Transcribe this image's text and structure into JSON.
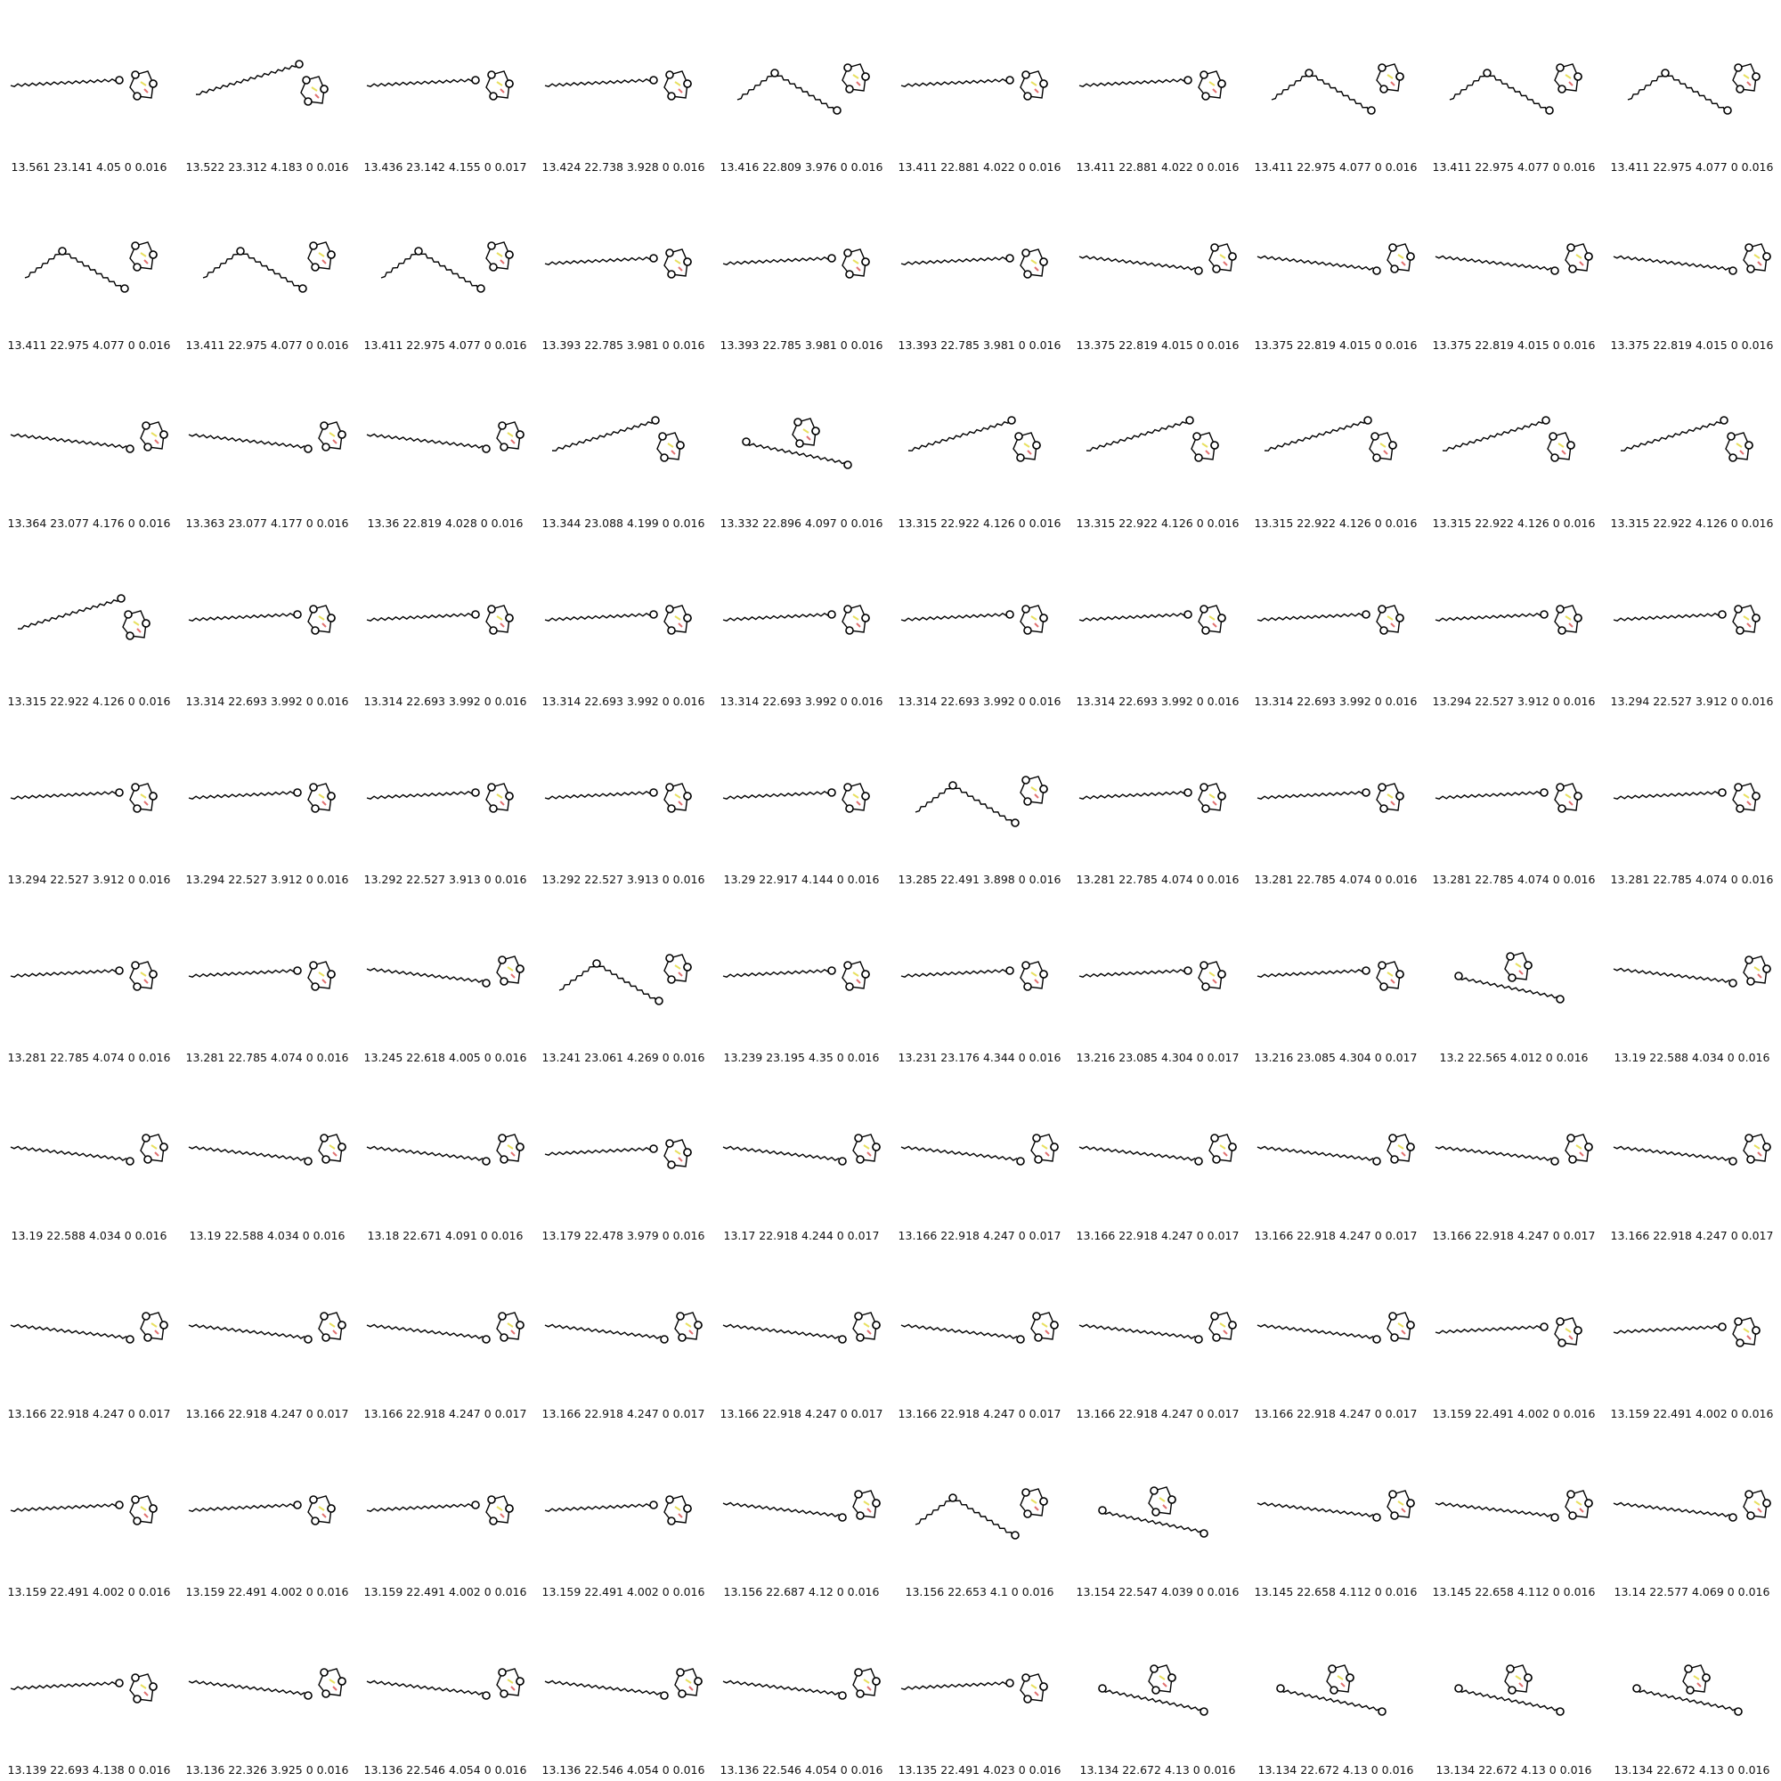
{
  "grid": {
    "rows": 10,
    "cols": 10,
    "captions": [
      "13.561 23.141 4.05 0 0.016",
      "13.522 23.312 4.183 0 0.016",
      "13.436 23.142 4.155 0 0.017",
      "13.424 22.738 3.928 0 0.016",
      "13.416 22.809 3.976 0 0.016",
      "13.411 22.881 4.022 0 0.016",
      "13.411 22.881 4.022 0 0.016",
      "13.411 22.975 4.077 0 0.016",
      "13.411 22.975 4.077 0 0.016",
      "13.411 22.975 4.077 0 0.016",
      "13.411 22.975 4.077 0 0.016",
      "13.411 22.975 4.077 0 0.016",
      "13.411 22.975 4.077 0 0.016",
      "13.393 22.785 3.981 0 0.016",
      "13.393 22.785 3.981 0 0.016",
      "13.393 22.785 3.981 0 0.016",
      "13.375 22.819 4.015 0 0.016",
      "13.375 22.819 4.015 0 0.016",
      "13.375 22.819 4.015 0 0.016",
      "13.375 22.819 4.015 0 0.016",
      "13.364 23.077 4.176 0 0.016",
      "13.363 23.077 4.177 0 0.016",
      "13.36 22.819 4.028 0 0.016",
      "13.344 23.088 4.199 0 0.016",
      "13.332 22.896 4.097 0 0.016",
      "13.315 22.922 4.126 0 0.016",
      "13.315 22.922 4.126 0 0.016",
      "13.315 22.922 4.126 0 0.016",
      "13.315 22.922 4.126 0 0.016",
      "13.315 22.922 4.126 0 0.016",
      "13.315 22.922 4.126 0 0.016",
      "13.314 22.693 3.992 0 0.016",
      "13.314 22.693 3.992 0 0.016",
      "13.314 22.693 3.992 0 0.016",
      "13.314 22.693 3.992 0 0.016",
      "13.314 22.693 3.992 0 0.016",
      "13.314 22.693 3.992 0 0.016",
      "13.314 22.693 3.992 0 0.016",
      "13.294 22.527 3.912 0 0.016",
      "13.294 22.527 3.912 0 0.016",
      "13.294 22.527 3.912 0 0.016",
      "13.294 22.527 3.912 0 0.016",
      "13.292 22.527 3.913 0 0.016",
      "13.292 22.527 3.913 0 0.016",
      "13.29 22.917 4.144 0 0.016",
      "13.285 22.491 3.898 0 0.016",
      "13.281 22.785 4.074 0 0.016",
      "13.281 22.785 4.074 0 0.016",
      "13.281 22.785 4.074 0 0.016",
      "13.281 22.785 4.074 0 0.016",
      "13.281 22.785 4.074 0 0.016",
      "13.281 22.785 4.074 0 0.016",
      "13.245 22.618 4.005 0 0.016",
      "13.241 23.061 4.269 0 0.016",
      "13.239 23.195 4.35 0 0.016",
      "13.231 23.176 4.344 0 0.016",
      "13.216 23.085 4.304 0 0.017",
      "13.216 23.085 4.304 0 0.017",
      "13.2 22.565 4.012 0 0.016",
      "13.19 22.588 4.034 0 0.016",
      "13.19 22.588 4.034 0 0.016",
      "13.19 22.588 4.034 0 0.016",
      "13.18 22.671 4.091 0 0.016",
      "13.179 22.478 3.979 0 0.016",
      "13.17 22.918 4.244 0 0.017",
      "13.166 22.918 4.247 0 0.017",
      "13.166 22.918 4.247 0 0.017",
      "13.166 22.918 4.247 0 0.017",
      "13.166 22.918 4.247 0 0.017",
      "13.166 22.918 4.247 0 0.017",
      "13.166 22.918 4.247 0 0.017",
      "13.166 22.918 4.247 0 0.017",
      "13.166 22.918 4.247 0 0.017",
      "13.166 22.918 4.247 0 0.017",
      "13.166 22.918 4.247 0 0.017",
      "13.166 22.918 4.247 0 0.017",
      "13.166 22.918 4.247 0 0.017",
      "13.166 22.918 4.247 0 0.017",
      "13.159 22.491 4.002 0 0.016",
      "13.159 22.491 4.002 0 0.016",
      "13.159 22.491 4.002 0 0.016",
      "13.159 22.491 4.002 0 0.016",
      "13.159 22.491 4.002 0 0.016",
      "13.159 22.491 4.002 0 0.016",
      "13.156 22.687 4.12 0 0.016",
      "13.156 22.653 4.1 0 0.016",
      "13.154 22.547 4.039 0 0.016",
      "13.145 22.658 4.112 0 0.016",
      "13.145 22.658 4.112 0 0.016",
      "13.14 22.577 4.069 0 0.016",
      "13.139 22.693 4.138 0 0.016",
      "13.136 22.326 3.925 0 0.016",
      "13.136 22.546 4.054 0 0.016",
      "13.136 22.546 4.054 0 0.016",
      "13.136 22.546 4.054 0 0.016",
      "13.135 22.491 4.023 0 0.016",
      "13.134 22.672 4.13 0 0.016",
      "13.134 22.672 4.13 0 0.016",
      "13.134 22.672 4.13 0 0.016",
      "13.134 22.672 4.13 0 0.016"
    ],
    "layouts": [
      "flat",
      "rising",
      "flat",
      "flat",
      "zigzag",
      "flat",
      "flat",
      "zigzag",
      "zigzag",
      "zigzag",
      "zigzag",
      "zigzag",
      "zigzag",
      "flat",
      "flat",
      "flat",
      "descending",
      "descending",
      "descending",
      "descending",
      "descending",
      "descending",
      "descending",
      "rising",
      "loop",
      "rising",
      "rising",
      "rising",
      "rising",
      "rising",
      "rising",
      "flat",
      "flat",
      "flat",
      "flat",
      "flat",
      "flat",
      "flat",
      "flat",
      "flat",
      "flat",
      "flat",
      "flat",
      "flat",
      "flat",
      "zigzag",
      "flat",
      "flat",
      "flat",
      "flat",
      "flat",
      "flat",
      "descending",
      "zigzag",
      "flat",
      "flat",
      "flat",
      "flat",
      "loop",
      "descending",
      "descending",
      "descending",
      "descending",
      "flat",
      "descending",
      "descending",
      "descending",
      "descending",
      "descending",
      "descending",
      "descending",
      "descending",
      "descending",
      "descending",
      "descending",
      "descending",
      "descending",
      "descending",
      "flat",
      "flat",
      "flat",
      "flat",
      "flat",
      "flat",
      "descending",
      "zigzag",
      "loop",
      "descending",
      "descending",
      "descending",
      "flat",
      "descending",
      "descending",
      "descending",
      "descending",
      "flat",
      "loop",
      "loop",
      "loop",
      "loop"
    ]
  },
  "colors": {
    "stroke": "#000000",
    "pair_yellow": "#e8e060",
    "pair_pink": "#e07070",
    "node_fill": "#ffffff"
  }
}
